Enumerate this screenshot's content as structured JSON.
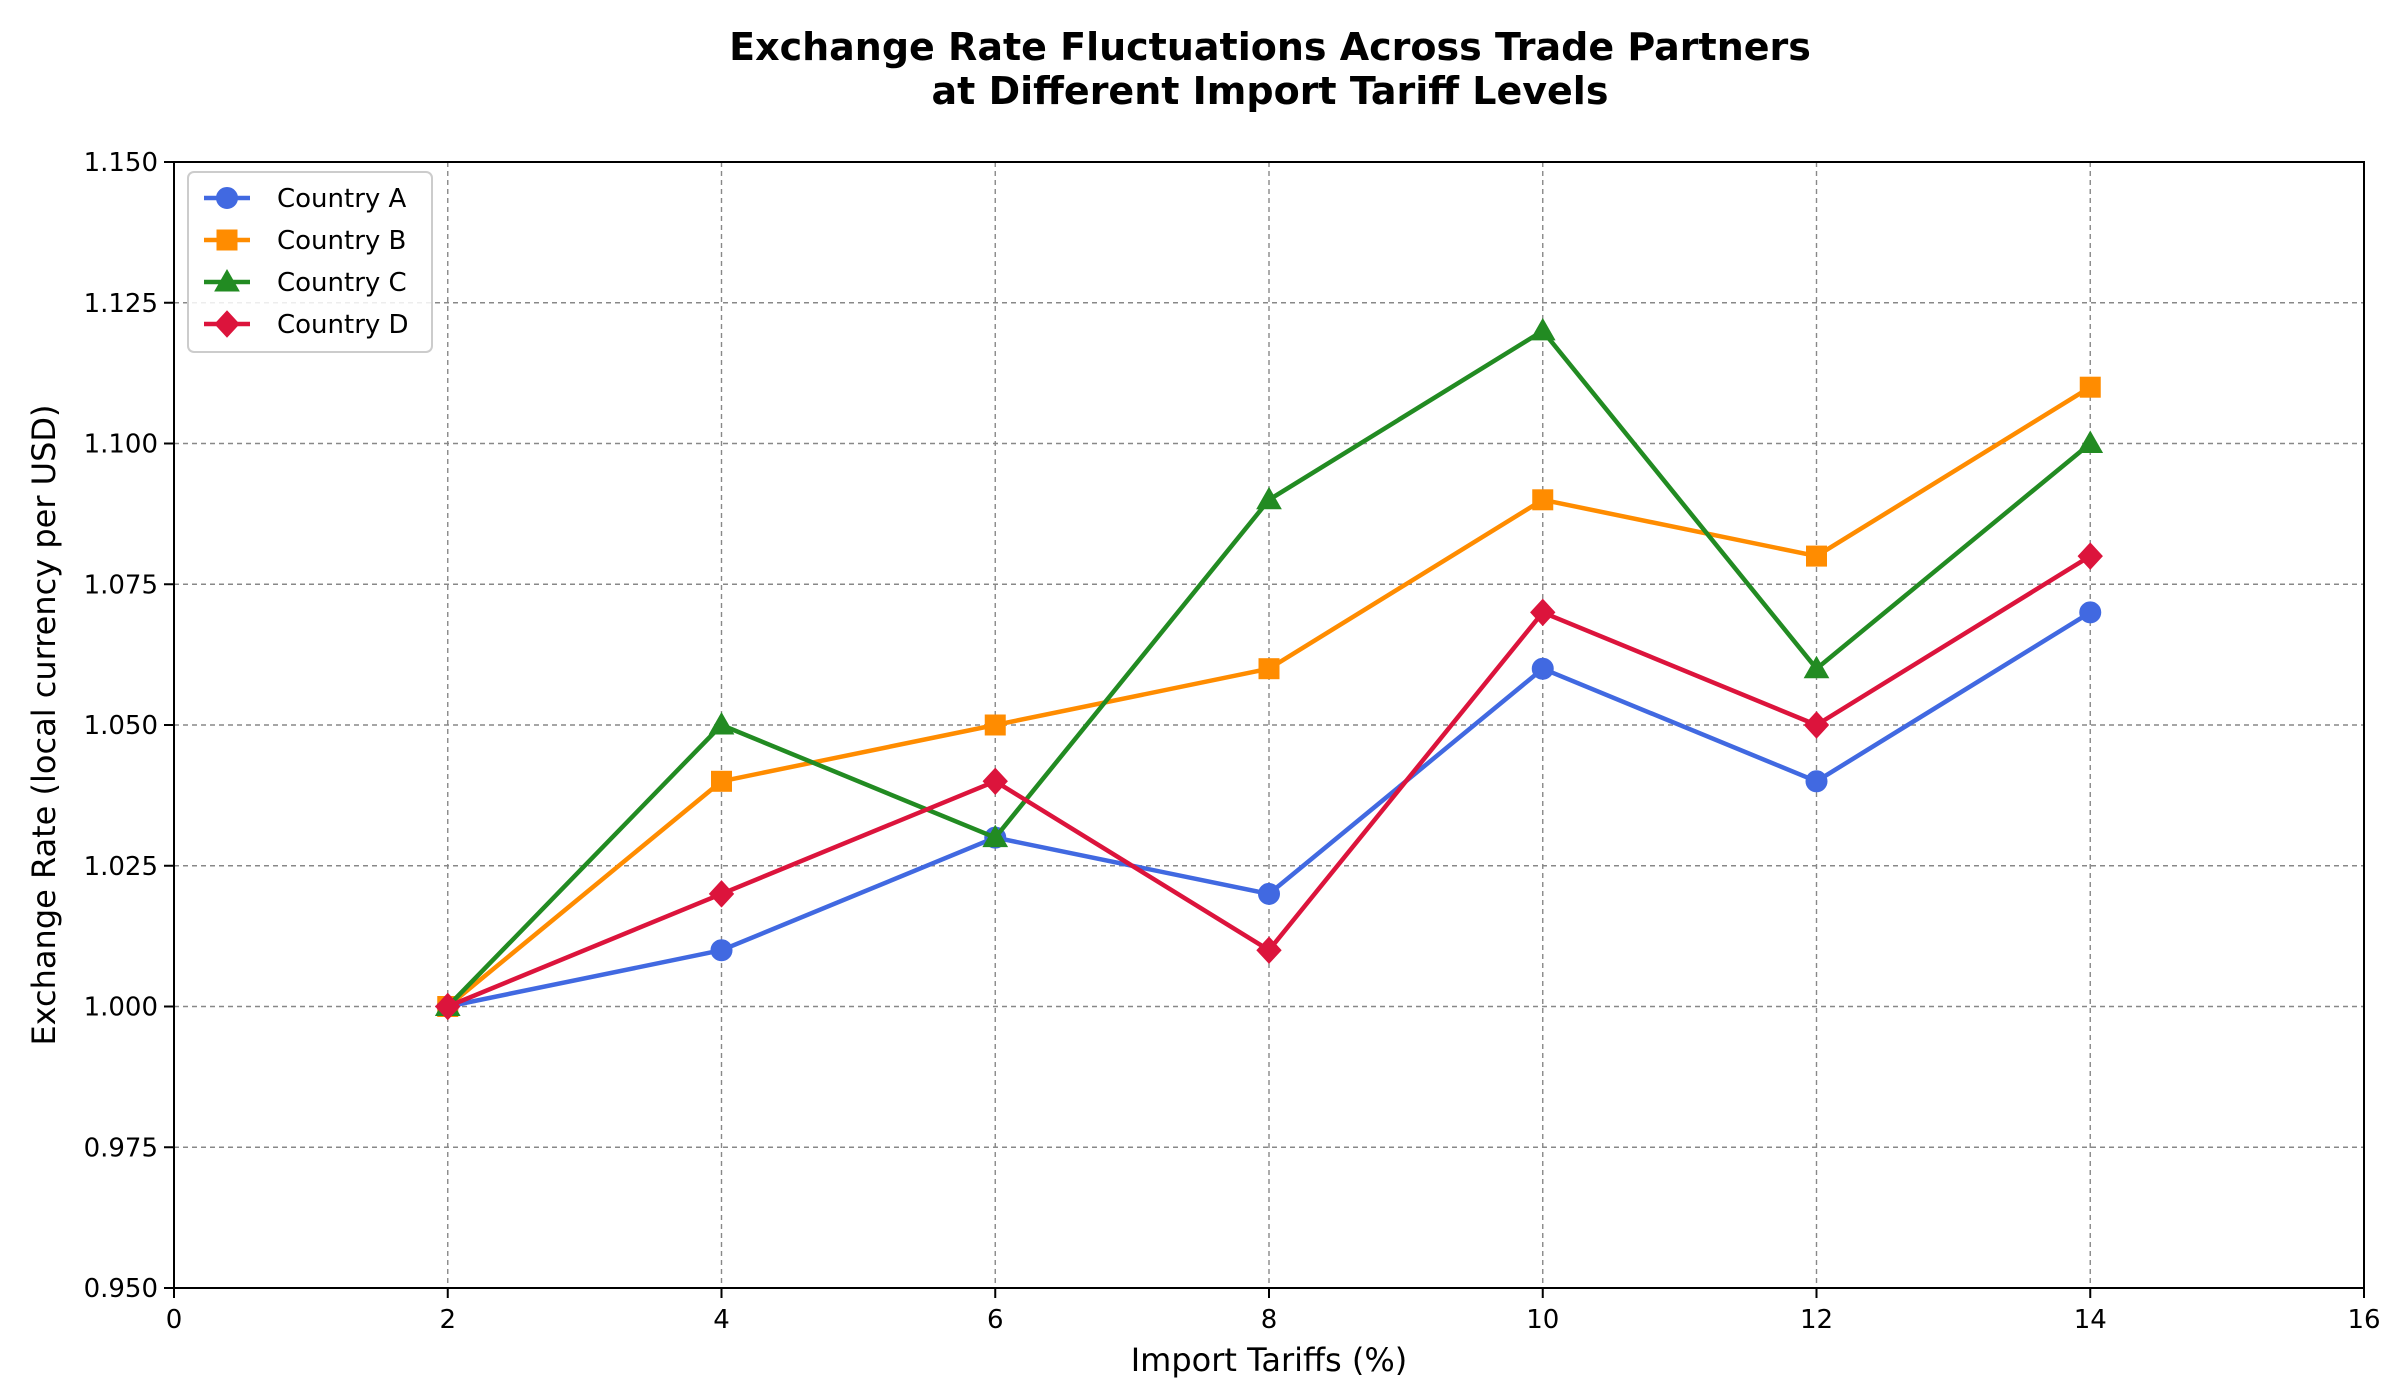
{
  "chart_data": {
    "type": "line",
    "title_line1": "Exchange Rate Fluctuations Across Trade Partners",
    "title_line2": "at Different Import Tariff Levels",
    "xlabel": "Import Tariffs (%)",
    "ylabel": "Exchange Rate (local currency per USD)",
    "xlim": [
      0,
      16
    ],
    "ylim": [
      0.95,
      1.15
    ],
    "xticks": [
      0,
      2,
      4,
      6,
      8,
      10,
      12,
      14,
      16
    ],
    "yticks": [
      0.95,
      0.975,
      1.0,
      1.025,
      1.05,
      1.075,
      1.1,
      1.125,
      1.15
    ],
    "xtick_labels": [
      "0",
      "2",
      "4",
      "6",
      "8",
      "10",
      "12",
      "14",
      "16"
    ],
    "ytick_labels": [
      "0.950",
      "0.975",
      "1.000",
      "1.025",
      "1.050",
      "1.075",
      "1.100",
      "1.125",
      "1.150"
    ],
    "grid": true,
    "legend_position": "upper-left",
    "x": [
      2,
      4,
      6,
      8,
      10,
      12,
      14
    ],
    "series": [
      {
        "name": "Country A",
        "marker": "circle",
        "color": "#4169E1",
        "values": [
          1.0,
          1.01,
          1.03,
          1.02,
          1.06,
          1.04,
          1.07
        ]
      },
      {
        "name": "Country B",
        "marker": "square",
        "color": "#FF8C00",
        "values": [
          1.0,
          1.04,
          1.05,
          1.06,
          1.09,
          1.08,
          1.11
        ]
      },
      {
        "name": "Country C",
        "marker": "triangle",
        "color": "#228B22",
        "values": [
          1.0,
          1.05,
          1.03,
          1.09,
          1.12,
          1.06,
          1.1
        ]
      },
      {
        "name": "Country D",
        "marker": "diamond",
        "color": "#DC143C",
        "values": [
          1.0,
          1.02,
          1.04,
          1.01,
          1.07,
          1.05,
          1.08
        ]
      }
    ]
  }
}
